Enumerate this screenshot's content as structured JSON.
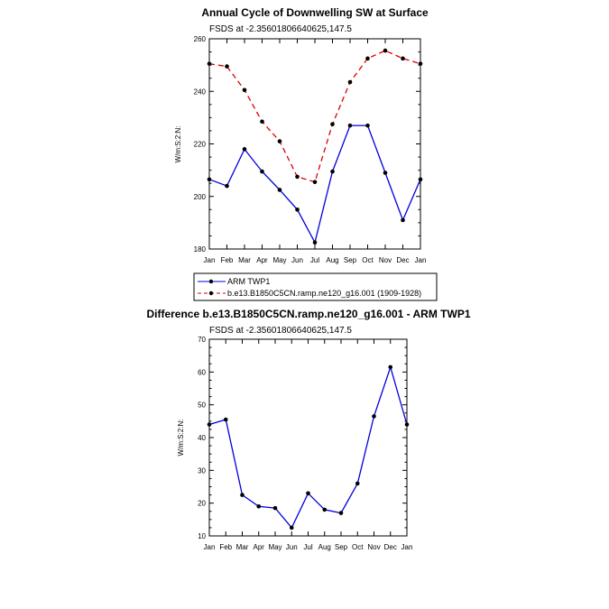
{
  "chart_data": [
    {
      "type": "line",
      "title": "Annual Cycle of Downwelling SW at Surface",
      "subtitle": "FSDS at -2.35601806640625,147.5",
      "ylabel": "W/m:S:2:N:",
      "categories": [
        "Jan",
        "Feb",
        "Mar",
        "Apr",
        "May",
        "Jun",
        "Jul",
        "Aug",
        "Sep",
        "Oct",
        "Nov",
        "Dec",
        "Jan"
      ],
      "ylim": [
        180,
        260
      ],
      "yticks": [
        "180",
        "200",
        "220",
        "240",
        "260"
      ],
      "series": [
        {
          "name": "ARM TWP1",
          "color": "#0000dd",
          "dash": "none",
          "values": [
            206.5,
            204,
            218,
            209.5,
            202.5,
            195,
            182.5,
            209.5,
            227,
            227,
            209,
            191,
            206.5
          ]
        },
        {
          "name": "b.e13.B1850C5CN.ramp.ne120_g16.001 (1909-1928)",
          "color": "#dd0000",
          "dash": "6,4",
          "values": [
            250.5,
            249.5,
            240.5,
            228.5,
            221,
            207.5,
            205.5,
            227.5,
            243.5,
            252.5,
            255.5,
            252.5,
            250.5
          ]
        }
      ],
      "legend": "below"
    },
    {
      "type": "line",
      "title": "Difference b.e13.B1850C5CN.ramp.ne120_g16.001 - ARM TWP1",
      "subtitle": "FSDS at -2.35601806640625,147.5",
      "ylabel": "W/m:S:2:N:",
      "categories": [
        "Jan",
        "Feb",
        "Mar",
        "Apr",
        "May",
        "Jun",
        "Jul",
        "Aug",
        "Sep",
        "Oct",
        "Nov",
        "Dec",
        "Jan"
      ],
      "ylim": [
        10,
        70
      ],
      "yticks": [
        "10",
        "20",
        "30",
        "40",
        "50",
        "60",
        "70"
      ],
      "series": [
        {
          "color": "#0000dd",
          "dash": "none",
          "values": [
            44,
            45.5,
            22.5,
            19,
            18.5,
            12.5,
            23,
            18,
            17,
            26,
            46.5,
            61.5,
            44
          ]
        }
      ]
    }
  ]
}
